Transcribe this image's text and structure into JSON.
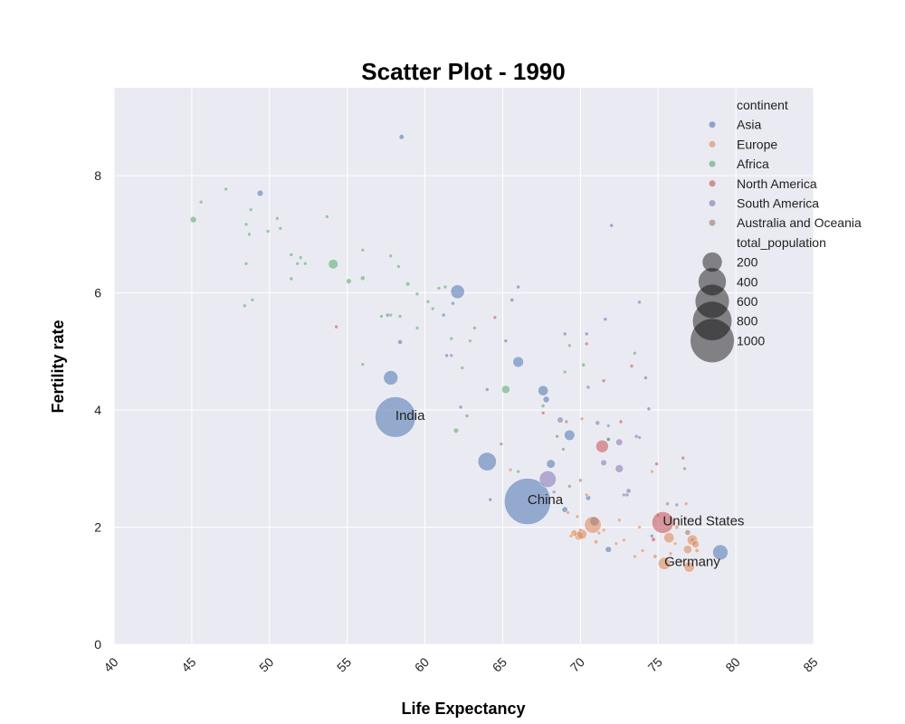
{
  "chart_data": {
    "type": "scatter",
    "title": "Scatter Plot - 1990",
    "xlabel": "Life Expectancy",
    "ylabel": "Fertility rate",
    "xlim": [
      40,
      85
    ],
    "ylim": [
      0,
      9.5
    ],
    "xticks": [
      "40",
      "45",
      "50",
      "55",
      "60",
      "65",
      "70",
      "75",
      "80",
      "85"
    ],
    "yticks": [
      "0",
      "2",
      "4",
      "6",
      "8"
    ],
    "grid": true,
    "legend_placement": "top-right",
    "hue_title": "continent",
    "size_title": "total_population",
    "size_legend": [
      {
        "label": "200",
        "value": 200
      },
      {
        "label": "400",
        "value": 400
      },
      {
        "label": "600",
        "value": 600
      },
      {
        "label": "800",
        "value": 800
      },
      {
        "label": "1000",
        "value": 1000
      }
    ],
    "series": [
      {
        "name": "Asia",
        "color": "#4c72b0",
        "points": [
          [
            58.1,
            3.88,
            870
          ],
          [
            66.6,
            2.44,
            1135
          ],
          [
            62.1,
            6.02,
            100
          ],
          [
            57.8,
            4.55,
            110
          ],
          [
            64.0,
            3.12,
            180
          ],
          [
            49.4,
            7.7,
            20
          ],
          [
            58.5,
            8.66,
            14
          ],
          [
            66.0,
            4.82,
            60
          ],
          [
            67.6,
            4.33,
            55
          ],
          [
            67.8,
            4.18,
            22
          ],
          [
            69.3,
            3.57,
            58
          ],
          [
            68.1,
            3.08,
            40
          ],
          [
            70.9,
            2.1,
            45
          ],
          [
            79.0,
            1.57,
            124
          ],
          [
            71.8,
            1.62,
            20
          ],
          [
            69.0,
            2.3,
            18
          ],
          [
            70.5,
            2.5,
            14
          ],
          [
            73.8,
            5.84,
            6
          ],
          [
            70.4,
            5.3,
            6
          ],
          [
            65.6,
            5.88,
            8
          ],
          [
            57.6,
            5.62,
            8
          ],
          [
            58.4,
            5.16,
            12
          ],
          [
            71.8,
            3.5,
            12
          ],
          [
            72.0,
            7.15,
            2
          ],
          [
            74.2,
            4.55,
            2
          ],
          [
            66.0,
            6.1,
            2
          ],
          [
            65.2,
            5.18,
            3
          ],
          [
            62.3,
            4.05,
            3
          ],
          [
            61.4,
            4.93,
            4
          ],
          [
            71.6,
            5.55,
            3
          ],
          [
            64.0,
            4.35,
            3
          ],
          [
            61.2,
            5.62,
            2
          ],
          [
            77.2,
            1.78,
            4
          ],
          [
            74.6,
            1.85,
            3
          ],
          [
            74.4,
            4.02,
            2
          ],
          [
            64.2,
            2.47,
            2
          ],
          [
            73.0,
            2.55,
            3
          ],
          [
            73.6,
            3.55,
            2
          ],
          [
            69.0,
            5.3,
            2
          ],
          [
            61.8,
            5.82,
            3
          ]
        ]
      },
      {
        "name": "Europe",
        "color": "#dd8452",
        "points": [
          [
            75.4,
            1.38,
            80
          ],
          [
            77.0,
            1.32,
            57
          ],
          [
            75.7,
            1.82,
            56
          ],
          [
            77.2,
            1.78,
            58
          ],
          [
            76.9,
            1.62,
            38
          ],
          [
            77.4,
            1.71,
            30
          ],
          [
            69.9,
            1.85,
            38
          ],
          [
            69.6,
            1.9,
            23
          ],
          [
            70.8,
            2.04,
            148
          ],
          [
            70.1,
            1.88,
            52
          ],
          [
            71.0,
            1.75,
            10
          ],
          [
            77.5,
            1.6,
            10
          ],
          [
            74.8,
            1.5,
            10
          ],
          [
            76.2,
            2.0,
            10
          ],
          [
            76.1,
            1.72,
            5
          ],
          [
            72.3,
            1.72,
            5
          ],
          [
            73.5,
            1.5,
            6
          ],
          [
            71.2,
            1.9,
            4
          ],
          [
            69.8,
            2.18,
            5
          ],
          [
            70.4,
            2.55,
            3
          ],
          [
            72.5,
            2.12,
            4
          ],
          [
            73.8,
            2.0,
            2
          ],
          [
            76.5,
            1.42,
            8
          ],
          [
            74.6,
            2.95,
            3
          ],
          [
            70.0,
            1.95,
            3
          ],
          [
            69.2,
            2.25,
            2
          ],
          [
            75.0,
            2.2,
            4
          ],
          [
            76.8,
            2.4,
            3
          ],
          [
            65.5,
            2.98,
            4
          ],
          [
            74.0,
            1.6,
            2
          ],
          [
            75.8,
            1.55,
            3
          ],
          [
            69.4,
            1.85,
            3
          ],
          [
            70.1,
            3.85,
            2
          ],
          [
            72.8,
            1.78,
            2
          ],
          [
            71.5,
            1.95,
            2
          ]
        ]
      },
      {
        "name": "Africa",
        "color": "#55a868",
        "points": [
          [
            45.1,
            7.25,
            22
          ],
          [
            54.1,
            6.49,
            50
          ],
          [
            65.2,
            4.35,
            36
          ],
          [
            62.0,
            3.65,
            15
          ],
          [
            55.1,
            6.2,
            15
          ],
          [
            56.0,
            6.25,
            12
          ],
          [
            58.9,
            6.15,
            10
          ],
          [
            51.4,
            6.24,
            8
          ],
          [
            50.7,
            7.1,
            7
          ],
          [
            48.7,
            7.0,
            6
          ],
          [
            49.9,
            7.05,
            5
          ],
          [
            48.5,
            7.17,
            4
          ],
          [
            50.5,
            7.27,
            4
          ],
          [
            53.7,
            7.3,
            4
          ],
          [
            47.2,
            7.77,
            3
          ],
          [
            45.6,
            7.55,
            3
          ],
          [
            48.8,
            7.42,
            3
          ],
          [
            51.8,
            6.5,
            5
          ],
          [
            52.3,
            6.5,
            4
          ],
          [
            52.0,
            6.6,
            4
          ],
          [
            51.4,
            6.65,
            3
          ],
          [
            56.0,
            6.73,
            3
          ],
          [
            57.8,
            6.63,
            4
          ],
          [
            58.3,
            6.45,
            4
          ],
          [
            57.8,
            5.62,
            6
          ],
          [
            59.5,
            5.98,
            3
          ],
          [
            61.3,
            6.1,
            3
          ],
          [
            60.9,
            6.08,
            2
          ],
          [
            62.9,
            5.18,
            5
          ],
          [
            60.5,
            5.73,
            2
          ],
          [
            70.2,
            4.77,
            8
          ],
          [
            67.6,
            4.07,
            8
          ],
          [
            71.8,
            3.5,
            5
          ],
          [
            73.5,
            4.97,
            3
          ],
          [
            62.4,
            4.72,
            3
          ],
          [
            61.7,
            5.22,
            2
          ],
          [
            57.2,
            5.6,
            3
          ],
          [
            59.5,
            5.4,
            2
          ],
          [
            60.2,
            5.85,
            2
          ],
          [
            48.4,
            5.78,
            3
          ],
          [
            48.5,
            6.5,
            2
          ],
          [
            48.9,
            5.88,
            2
          ],
          [
            56.0,
            4.78,
            3
          ],
          [
            58.4,
            5.6,
            3
          ],
          [
            66.0,
            2.95,
            2
          ],
          [
            69.0,
            4.65,
            2
          ],
          [
            69.3,
            5.1,
            2
          ]
        ]
      },
      {
        "name": "North America",
        "color": "#c44e52",
        "points": [
          [
            75.3,
            2.08,
            250
          ],
          [
            71.4,
            3.38,
            84
          ],
          [
            54.3,
            5.42,
            7
          ],
          [
            64.5,
            5.58,
            5
          ],
          [
            67.6,
            3.95,
            5
          ],
          [
            70.4,
            5.13,
            4
          ],
          [
            73.3,
            4.75,
            3
          ],
          [
            71.5,
            4.5,
            2
          ],
          [
            74.7,
            1.79,
            10
          ],
          [
            74.9,
            3.08,
            3
          ],
          [
            76.6,
            3.18,
            3
          ],
          [
            72.6,
            3.8,
            2
          ]
        ]
      },
      {
        "name": "South America",
        "color": "#8172b3",
        "points": [
          [
            67.9,
            2.82,
            150
          ],
          [
            72.5,
            3.0,
            35
          ],
          [
            71.5,
            3.1,
            20
          ],
          [
            72.5,
            3.45,
            25
          ],
          [
            73.1,
            2.62,
            13
          ],
          [
            71.1,
            3.78,
            12
          ],
          [
            68.7,
            3.83,
            20
          ],
          [
            70.5,
            4.39,
            8
          ],
          [
            61.7,
            4.93,
            7
          ],
          [
            73.8,
            3.53,
            4
          ],
          [
            71.8,
            3.73,
            3
          ],
          [
            76.2,
            2.38,
            3
          ],
          [
            72.8,
            2.55,
            3
          ],
          [
            68.3,
            2.6,
            2
          ]
        ]
      },
      {
        "name": "Australia and Oceania",
        "color": "#937860",
        "points": [
          [
            76.9,
            1.91,
            17
          ],
          [
            75.6,
            2.4,
            3
          ],
          [
            63.2,
            5.4,
            4
          ],
          [
            64.9,
            3.42,
            2
          ],
          [
            76.7,
            3.0,
            2
          ],
          [
            68.9,
            3.33,
            2
          ],
          [
            69.3,
            2.7,
            2
          ],
          [
            68.5,
            3.55,
            2
          ],
          [
            70.0,
            2.8,
            2
          ],
          [
            69.1,
            3.8,
            2
          ],
          [
            62.7,
            3.9,
            2
          ]
        ]
      }
    ],
    "annotations": [
      {
        "text": "India",
        "x": 58.1,
        "y": 3.88
      },
      {
        "text": "China",
        "x": 66.6,
        "y": 2.44
      },
      {
        "text": "United States",
        "x": 75.3,
        "y": 2.08
      },
      {
        "text": "Germany",
        "x": 75.4,
        "y": 1.38
      }
    ]
  }
}
